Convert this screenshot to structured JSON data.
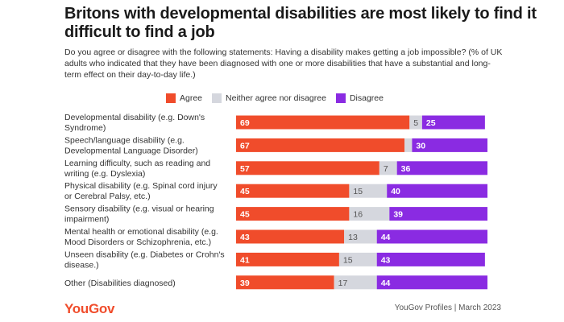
{
  "title": "Britons with developmental disabilities are most likely to find it difficult to find a job",
  "subtitle": "Do you agree or disagree with the following statements: Having a disability makes getting a job impossible? (% of UK adults who indicated that they have been diagnosed with one or more disabilities that have a substantial and long-term effect on their day-to-day life.)",
  "logo": "YouGov",
  "source": "YouGov Profiles | March 2023",
  "colors": {
    "agree": "#f04c2b",
    "neither": "#d5d7de",
    "disagree": "#8a2be2"
  },
  "chart_data": {
    "type": "bar",
    "orientation": "horizontal-stacked",
    "legend_position": "top",
    "categories": [
      [
        "Developmental disability (e.g. Down's",
        "Syndrome)"
      ],
      [
        "Speech/language disability (e.g.",
        "Developmental Language Disorder)"
      ],
      [
        "Learning difficulty, such as reading and",
        "writing (e.g. Dyslexia)"
      ],
      [
        "Physical disability (e.g. Spinal cord injury",
        "or Cerebral Palsy, etc.)"
      ],
      [
        "Sensory disability (e.g. visual or hearing",
        "impairment)"
      ],
      [
        "Mental health or emotional disability (e.g.",
        "Mood Disorders or Schizophrenia, etc.)"
      ],
      [
        "Unseen disability (e.g. Diabetes or Crohn's",
        "disease.)"
      ],
      [
        "Other (Disabilities diagnosed)"
      ]
    ],
    "series": [
      {
        "name": "Agree",
        "values": [
          69,
          67,
          57,
          45,
          45,
          43,
          41,
          39
        ]
      },
      {
        "name": "Neither agree nor disagree",
        "values": [
          5,
          3,
          7,
          15,
          16,
          13,
          15,
          17
        ]
      },
      {
        "name": "Disagree",
        "values": [
          25,
          30,
          36,
          40,
          39,
          44,
          43,
          44
        ]
      }
    ],
    "data_labels": [
      [
        "69",
        "5",
        "25"
      ],
      [
        "67",
        "",
        "30"
      ],
      [
        "57",
        "7",
        "36"
      ],
      [
        "45",
        "15",
        "40"
      ],
      [
        "45",
        "16",
        "39"
      ],
      [
        "43",
        "13",
        "44"
      ],
      [
        "41",
        "15",
        "43"
      ],
      [
        "39",
        "17",
        "44"
      ]
    ]
  }
}
